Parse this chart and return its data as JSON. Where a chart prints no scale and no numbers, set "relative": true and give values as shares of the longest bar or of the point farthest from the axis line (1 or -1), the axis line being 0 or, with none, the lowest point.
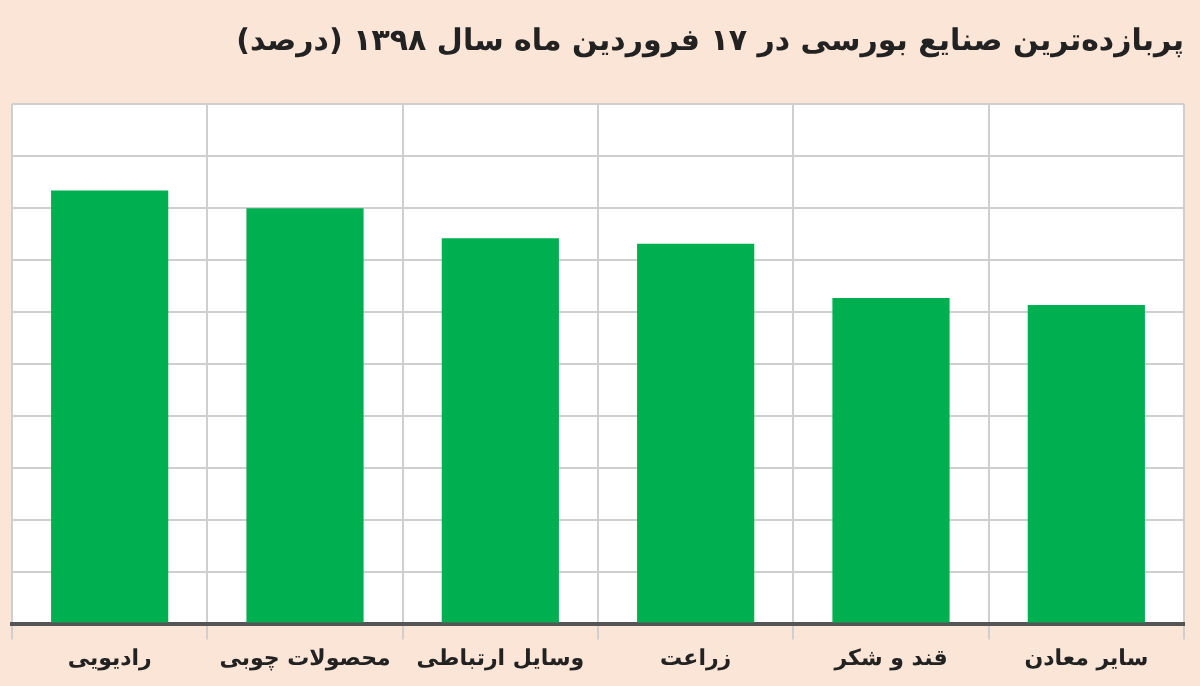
{
  "chart_data": {
    "type": "bar",
    "title": "پربازده‌ترین صنایع بورسی در ۱۷ فروردین ماه سال ۱۳۹۸ (درصد)",
    "categories": [
      "رادیویی",
      "محصولات چوبی",
      "وسایل ارتباطی",
      "زراعت",
      "قند و شکر",
      "سایر معادن"
    ],
    "values": [
      1,
      0.959,
      0.89,
      0.877,
      0.752,
      0.736
    ],
    "color": "#00b050",
    "relative": true,
    "grid": true
  }
}
